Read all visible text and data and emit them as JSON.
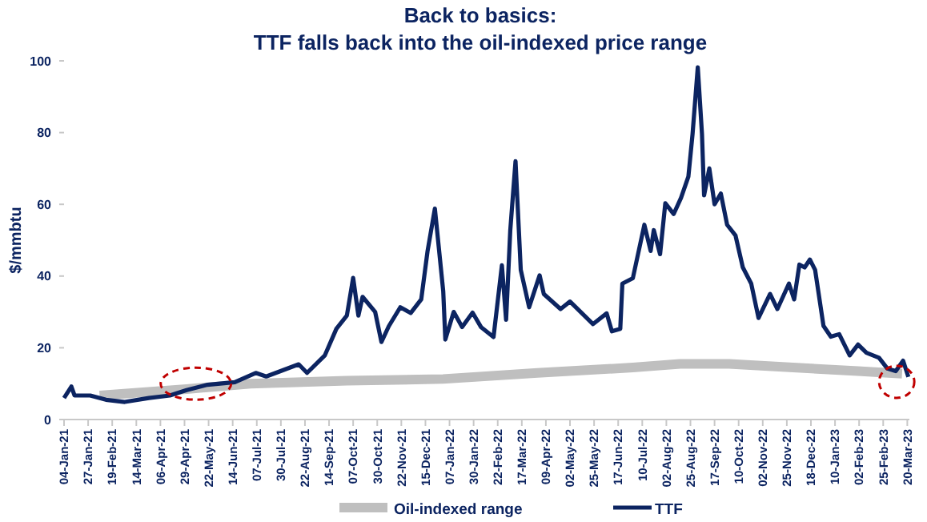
{
  "chart_data": {
    "type": "line",
    "title": "Back to basics:\nTTF falls back into the oil-indexed price range",
    "ylabel": "$/mmbtu",
    "xlim": [
      "2021-01-04",
      "2023-03-22"
    ],
    "ylim": [
      0,
      100
    ],
    "yticks": [
      0,
      20,
      40,
      60,
      80,
      100
    ],
    "xticks": [
      {
        "value": "2021-01-04",
        "label": "04-Jan-21"
      },
      {
        "value": "2021-01-27",
        "label": "27-Jan-21"
      },
      {
        "value": "2021-02-19",
        "label": "19-Feb-21"
      },
      {
        "value": "2021-03-14",
        "label": "14-Mar-21"
      },
      {
        "value": "2021-04-06",
        "label": "06-Apr-21"
      },
      {
        "value": "2021-04-29",
        "label": "29-Apr-21"
      },
      {
        "value": "2021-05-22",
        "label": "22-May-21"
      },
      {
        "value": "2021-06-14",
        "label": "14-Jun-21"
      },
      {
        "value": "2021-07-07",
        "label": "07-Jul-21"
      },
      {
        "value": "2021-07-30",
        "label": "30-Jul-21"
      },
      {
        "value": "2021-08-22",
        "label": "22-Aug-21"
      },
      {
        "value": "2021-09-14",
        "label": "14-Sep-21"
      },
      {
        "value": "2021-10-07",
        "label": "07-Oct-21"
      },
      {
        "value": "2021-10-30",
        "label": "30-Oct-21"
      },
      {
        "value": "2021-11-22",
        "label": "22-Nov-21"
      },
      {
        "value": "2021-12-15",
        "label": "15-Dec-21"
      },
      {
        "value": "2022-01-07",
        "label": "07-Jan-22"
      },
      {
        "value": "2022-01-30",
        "label": "30-Jan-22"
      },
      {
        "value": "2022-02-22",
        "label": "22-Feb-22"
      },
      {
        "value": "2022-03-17",
        "label": "17-Mar-22"
      },
      {
        "value": "2022-04-09",
        "label": "09-Apr-22"
      },
      {
        "value": "2022-05-02",
        "label": "02-May-22"
      },
      {
        "value": "2022-05-25",
        "label": "25-May-22"
      },
      {
        "value": "2022-06-17",
        "label": "17-Jun-22"
      },
      {
        "value": "2022-07-10",
        "label": "10-Jul-22"
      },
      {
        "value": "2022-08-02",
        "label": "02-Aug-22"
      },
      {
        "value": "2022-08-25",
        "label": "25-Aug-22"
      },
      {
        "value": "2022-09-17",
        "label": "17-Sep-22"
      },
      {
        "value": "2022-10-10",
        "label": "10-Oct-22"
      },
      {
        "value": "2022-11-02",
        "label": "02-Nov-22"
      },
      {
        "value": "2022-11-25",
        "label": "25-Nov-22"
      },
      {
        "value": "2022-12-18",
        "label": "18-Dec-22"
      },
      {
        "value": "2023-01-10",
        "label": "10-Jan-23"
      },
      {
        "value": "2023-02-02",
        "label": "02-Feb-23"
      },
      {
        "value": "2023-02-25",
        "label": "25-Feb-23"
      },
      {
        "value": "2023-03-20",
        "label": "20-Mar-23"
      }
    ],
    "legend": "bottom",
    "grid": false,
    "series": [
      {
        "name": "Oil-indexed range",
        "color": "#bfbfbf",
        "x": [
          "2021-02-07",
          "2021-05-01",
          "2021-07-01",
          "2021-10-01",
          "2022-01-01",
          "2022-04-01",
          "2022-07-01",
          "2022-08-15",
          "2022-10-01",
          "2022-12-01",
          "2023-02-01",
          "2023-03-15"
        ],
        "values": [
          6.7,
          8.5,
          10,
          10.8,
          11.3,
          13,
          14.5,
          15.5,
          15.5,
          14.5,
          13.5,
          12.8
        ]
      },
      {
        "name": "TTF",
        "color": "#0c2461",
        "x": [
          "2021-01-04",
          "2021-01-11",
          "2021-01-14",
          "2021-01-29",
          "2021-02-13",
          "2021-03-03",
          "2021-03-26",
          "2021-04-15",
          "2021-05-01",
          "2021-05-21",
          "2021-06-16",
          "2021-07-06",
          "2021-07-16",
          "2021-08-16",
          "2021-08-24",
          "2021-09-10",
          "2021-09-21",
          "2021-10-01",
          "2021-10-07",
          "2021-10-12",
          "2021-10-16",
          "2021-10-28",
          "2021-11-03",
          "2021-11-10",
          "2021-11-21",
          "2021-12-01",
          "2021-12-11",
          "2021-12-17",
          "2021-12-24",
          "2022-01-01",
          "2022-01-03",
          "2022-01-11",
          "2022-01-19",
          "2022-01-29",
          "2022-02-06",
          "2022-02-18",
          "2022-02-26",
          "2022-03-02",
          "2022-03-06",
          "2022-03-11",
          "2022-03-16",
          "2022-03-24",
          "2022-04-03",
          "2022-04-07",
          "2022-04-23",
          "2022-05-02",
          "2022-05-24",
          "2022-06-06",
          "2022-06-11",
          "2022-06-19",
          "2022-06-21",
          "2022-07-01",
          "2022-07-12",
          "2022-07-18",
          "2022-07-21",
          "2022-07-27",
          "2022-08-01",
          "2022-08-09",
          "2022-08-16",
          "2022-08-23",
          "2022-08-27",
          "2022-09-01",
          "2022-09-05",
          "2022-09-07",
          "2022-09-12",
          "2022-09-17",
          "2022-09-23",
          "2022-09-29",
          "2022-10-07",
          "2022-10-14",
          "2022-10-22",
          "2022-10-29",
          "2022-11-09",
          "2022-11-16",
          "2022-11-27",
          "2022-12-02",
          "2022-12-07",
          "2022-12-12",
          "2022-12-17",
          "2022-12-22",
          "2022-12-30",
          "2023-01-06",
          "2023-01-14",
          "2023-01-24",
          "2023-02-01",
          "2023-02-09",
          "2023-02-21",
          "2023-03-01",
          "2023-03-09",
          "2023-03-16",
          "2023-03-21"
        ],
        "values": [
          6.0,
          9.2,
          6.7,
          6.7,
          5.5,
          4.9,
          6.0,
          6.7,
          8.2,
          9.7,
          10.4,
          13.0,
          12.0,
          15.4,
          13.0,
          17.9,
          25.3,
          29.0,
          39.5,
          29.0,
          34.2,
          30.0,
          21.6,
          26.0,
          31.3,
          29.7,
          33.5,
          46.9,
          58.8,
          35.7,
          22.3,
          30.0,
          25.8,
          29.8,
          25.8,
          23.0,
          43.0,
          27.8,
          52.8,
          72.0,
          41.7,
          31.3,
          40.2,
          35.0,
          30.8,
          32.9,
          26.6,
          29.6,
          24.6,
          25.3,
          37.9,
          39.4,
          54.3,
          47.0,
          52.8,
          46.1,
          60.3,
          57.3,
          61.8,
          67.7,
          79.6,
          98.2,
          79.6,
          62.5,
          70.0,
          60.0,
          63.0,
          54.3,
          51.3,
          42.4,
          37.9,
          28.3,
          35.0,
          30.8,
          37.9,
          33.5,
          43.2,
          42.4,
          44.6,
          41.7,
          26.1,
          23.1,
          23.8,
          17.9,
          20.9,
          18.6,
          17.2,
          14.2,
          13.5,
          16.4,
          11.9
        ]
      }
    ]
  }
}
